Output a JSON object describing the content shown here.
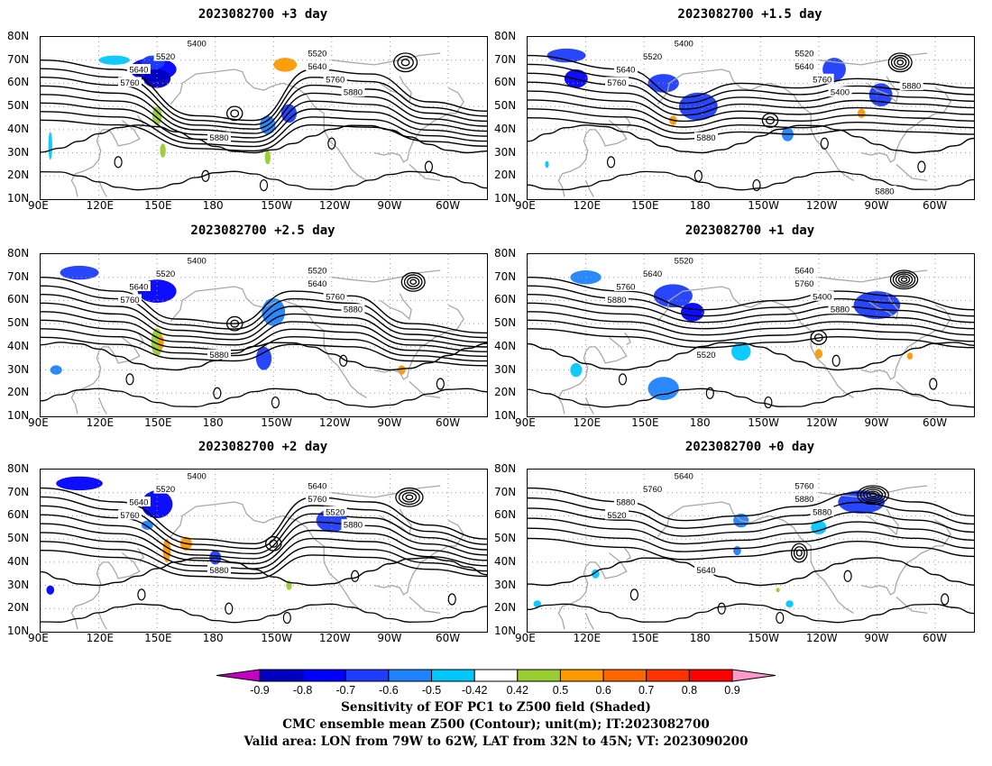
{
  "panels": [
    {
      "title": "2023082700 +3 day",
      "row": 0,
      "col": 0,
      "lead": 3,
      "contour_labels": [
        "5400",
        "5520",
        "5640",
        "5760",
        "5880",
        "5520",
        "5640",
        "5760",
        "5880"
      ]
    },
    {
      "title": "2023082700 +1.5 day",
      "row": 0,
      "col": 1,
      "lead": 1.5,
      "contour_labels": [
        "5400",
        "5520",
        "5640",
        "5760",
        "5880",
        "5520",
        "5640",
        "5760",
        "5400",
        "5880",
        "5880"
      ]
    },
    {
      "title": "2023082700 +2.5 day",
      "row": 1,
      "col": 0,
      "lead": 2.5,
      "contour_labels": [
        "5400",
        "5520",
        "5640",
        "5760",
        "5880",
        "5520",
        "5640",
        "5760",
        "5880"
      ]
    },
    {
      "title": "2023082700 +1 day",
      "row": 1,
      "col": 1,
      "lead": 1,
      "contour_labels": [
        "5520",
        "5640",
        "5760",
        "5880",
        "5520",
        "5640",
        "5760",
        "5400",
        "5880"
      ]
    },
    {
      "title": "2023082700 +2 day",
      "row": 2,
      "col": 0,
      "lead": 2,
      "contour_labels": [
        "5400",
        "5520",
        "5640",
        "5760",
        "5880",
        "5640",
        "5760",
        "5520",
        "5880"
      ]
    },
    {
      "title": "2023082700 +0 day",
      "row": 2,
      "col": 1,
      "lead": 0,
      "contour_labels": [
        "5640",
        "5760",
        "5880",
        "5520",
        "5640",
        "5760",
        "5880",
        "5880"
      ]
    }
  ],
  "axes": {
    "lat_labels": [
      "80N",
      "70N",
      "60N",
      "50N",
      "40N",
      "30N",
      "20N",
      "10N"
    ],
    "lon_labels": [
      "90E",
      "120E",
      "150E",
      "180",
      "150W",
      "120W",
      "90W",
      "60W"
    ],
    "lon_range_deg": [
      90,
      320
    ],
    "lat_range_deg": [
      10,
      80
    ]
  },
  "colorbar": {
    "tick_labels": [
      "-0.9",
      "-0.8",
      "-0.7",
      "-0.6",
      "-0.5",
      "-0.42",
      "0.42",
      "0.5",
      "0.6",
      "0.7",
      "0.8",
      "0.9"
    ],
    "colors": [
      "#c400c4",
      "#0000c0",
      "#0000ff",
      "#1e3cff",
      "#1f83ff",
      "#00c8ff",
      "#ffffff",
      "#9acd32",
      "#ff9900",
      "#ff6600",
      "#ff3300",
      "#ff0000",
      "#ff99cc"
    ]
  },
  "caption": {
    "line1": "Sensitivity of EOF PC1 to Z500 field (Shaded)",
    "line2": "CMC ensemble mean Z500 (Contour); unit(m); IT:2023082700",
    "line3": "Valid area: LON from 79W to 62W, LAT from 32N to 45N; VT: 2023090200"
  }
}
